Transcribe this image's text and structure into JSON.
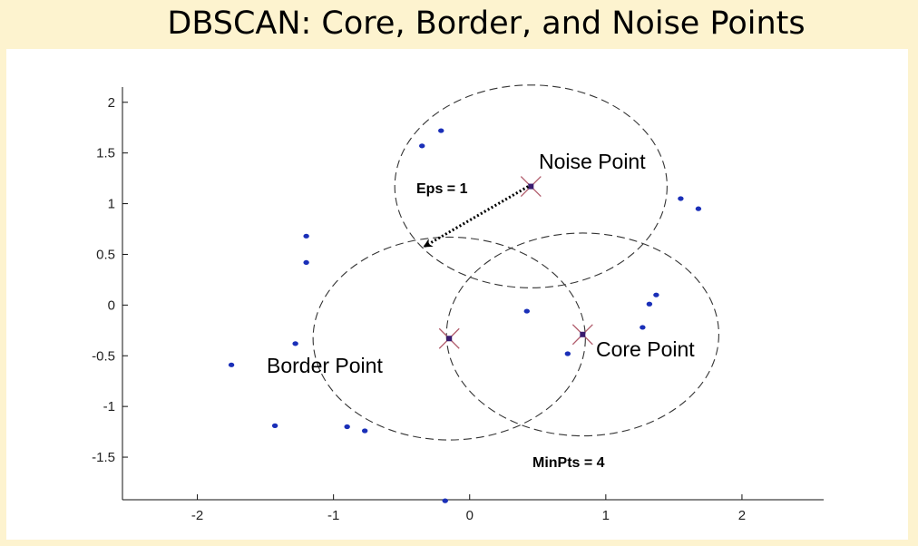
{
  "slide_title": "DBSCAN: Core, Border, and Noise Points",
  "chart_data": {
    "type": "scatter",
    "xlim": [
      -2.55,
      2.6
    ],
    "ylim": [
      -1.92,
      2.15
    ],
    "grid": false,
    "x_ticks": [
      -2,
      -1,
      0,
      1,
      2
    ],
    "x_tick_labels": [
      "-2",
      "-1",
      "0",
      "1",
      "2"
    ],
    "y_ticks": [
      2,
      1.5,
      1,
      0.5,
      0,
      -0.5,
      -1,
      -1.5
    ],
    "y_tick_labels": [
      "2",
      "1.5",
      "1",
      "0.5",
      "0",
      "-0.5",
      "-1",
      "-1.5"
    ],
    "points": [
      {
        "x": -0.35,
        "y": 1.57
      },
      {
        "x": -0.21,
        "y": 1.72
      },
      {
        "x": 1.55,
        "y": 1.05
      },
      {
        "x": 1.68,
        "y": 0.95
      },
      {
        "x": -1.2,
        "y": 0.68
      },
      {
        "x": -1.2,
        "y": 0.42
      },
      {
        "x": 1.37,
        "y": 0.1
      },
      {
        "x": 1.32,
        "y": 0.01
      },
      {
        "x": 0.42,
        "y": -0.06
      },
      {
        "x": 1.27,
        "y": -0.22
      },
      {
        "x": -1.28,
        "y": -0.38
      },
      {
        "x": 0.72,
        "y": -0.48
      },
      {
        "x": -1.75,
        "y": -0.59
      },
      {
        "x": -1.43,
        "y": -1.19
      },
      {
        "x": -0.9,
        "y": -1.2
      },
      {
        "x": -0.77,
        "y": -1.24
      },
      {
        "x": -0.18,
        "y": -1.93
      }
    ],
    "special_points": [
      {
        "role": "noise",
        "x": 0.45,
        "y": 1.17
      },
      {
        "role": "border",
        "x": -0.15,
        "y": -0.33
      },
      {
        "role": "core",
        "x": 0.83,
        "y": -0.29
      }
    ],
    "circles": [
      {
        "cx": 0.45,
        "cy": 1.17,
        "r": 1.0
      },
      {
        "cx": -0.15,
        "cy": -0.33,
        "r": 1.0
      },
      {
        "cx": 0.83,
        "cy": -0.29,
        "r": 1.0
      }
    ],
    "eps_arrow": {
      "from": [
        0.43,
        1.17
      ],
      "to": [
        -0.33,
        0.58
      ]
    },
    "annotations": {
      "noise": "Noise Point",
      "border": "Border Point",
      "core": "Core Point",
      "eps": "Eps = 1",
      "minpts": "MinPts = 4"
    },
    "colors": {
      "points": "#1a2fb8",
      "special": "#3a1a6e",
      "cross": "#b05a6a",
      "circle": "#333333"
    }
  }
}
